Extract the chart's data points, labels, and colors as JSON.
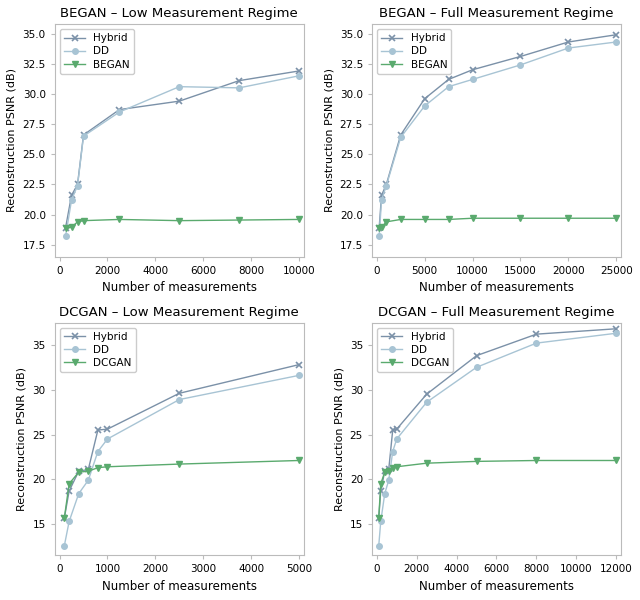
{
  "subplots": [
    {
      "title": "BEGAN – Low Measurement Regime",
      "xlabel": "Number of measurements",
      "ylabel": "Reconstruction PSNR (dB)",
      "xlim": [
        -200,
        10200
      ],
      "ylim": [
        16.5,
        35.8
      ],
      "yticks": [
        17.5,
        20.0,
        22.5,
        25.0,
        27.5,
        30.0,
        32.5,
        35.0
      ],
      "xticks": [
        0,
        2000,
        4000,
        6000,
        8000,
        10000
      ],
      "series": [
        {
          "label": "Hybrid",
          "color": "#7b91a8",
          "marker": "x",
          "x": [
            250,
            500,
            750,
            1000,
            2500,
            5000,
            7500,
            10000
          ],
          "y": [
            18.9,
            21.6,
            22.5,
            26.6,
            28.7,
            29.4,
            31.1,
            31.9
          ]
        },
        {
          "label": "DD",
          "color": "#a8c4d4",
          "marker": "o",
          "x": [
            250,
            500,
            750,
            1000,
            2500,
            5000,
            7500,
            10000
          ],
          "y": [
            18.2,
            21.2,
            22.4,
            26.5,
            28.5,
            30.6,
            30.5,
            31.5
          ]
        },
        {
          "label": "BEGAN",
          "color": "#5aaa6e",
          "marker": "v",
          "x": [
            250,
            500,
            750,
            1000,
            2500,
            5000,
            7500,
            10000
          ],
          "y": [
            18.85,
            18.95,
            19.4,
            19.5,
            19.6,
            19.5,
            19.55,
            19.6
          ]
        }
      ]
    },
    {
      "title": "BEGAN – Full Measurement Regime",
      "xlabel": "Number of measurements",
      "ylabel": "Reconstruction PSNR (dB)",
      "xlim": [
        -500,
        25500
      ],
      "ylim": [
        16.5,
        35.8
      ],
      "yticks": [
        17.5,
        20.0,
        22.5,
        25.0,
        27.5,
        30.0,
        32.5,
        35.0
      ],
      "xticks": [
        0,
        5000,
        10000,
        15000,
        20000,
        25000
      ],
      "series": [
        {
          "label": "Hybrid",
          "color": "#7b91a8",
          "marker": "x",
          "x": [
            250,
            500,
            1000,
            2500,
            5000,
            7500,
            10000,
            15000,
            20000,
            25000
          ],
          "y": [
            18.9,
            21.6,
            22.5,
            26.6,
            29.6,
            31.2,
            32.0,
            33.1,
            34.3,
            34.9
          ]
        },
        {
          "label": "DD",
          "color": "#a8c4d4",
          "marker": "o",
          "x": [
            250,
            500,
            1000,
            2500,
            5000,
            7500,
            10000,
            15000,
            20000,
            25000
          ],
          "y": [
            18.2,
            21.2,
            22.4,
            26.4,
            29.0,
            30.6,
            31.2,
            32.4,
            33.8,
            34.3
          ]
        },
        {
          "label": "BEGAN",
          "color": "#5aaa6e",
          "marker": "v",
          "x": [
            250,
            500,
            1000,
            2500,
            5000,
            7500,
            10000,
            15000,
            20000,
            25000
          ],
          "y": [
            18.85,
            18.95,
            19.4,
            19.6,
            19.6,
            19.6,
            19.7,
            19.7,
            19.7,
            19.7
          ]
        }
      ]
    },
    {
      "title": "DCGAN – Low Measurement Regime",
      "xlabel": "Number of measurements",
      "ylabel": "Reconstruction PSNR (dB)",
      "xlim": [
        -100,
        5100
      ],
      "ylim": [
        11.5,
        37.5
      ],
      "yticks": [
        15,
        20,
        25,
        30,
        35
      ],
      "xticks": [
        0,
        1000,
        2000,
        3000,
        4000,
        5000
      ],
      "series": [
        {
          "label": "Hybrid",
          "color": "#7b91a8",
          "marker": "x",
          "x": [
            100,
            200,
            400,
            600,
            800,
            1000,
            2500,
            5000
          ],
          "y": [
            15.7,
            18.7,
            20.9,
            21.1,
            25.5,
            25.6,
            29.6,
            32.8
          ]
        },
        {
          "label": "DD",
          "color": "#a8c4d4",
          "marker": "o",
          "x": [
            100,
            200,
            400,
            600,
            800,
            1000,
            2500,
            5000
          ],
          "y": [
            12.6,
            15.3,
            18.4,
            19.9,
            23.1,
            24.5,
            28.9,
            31.6
          ]
        },
        {
          "label": "DCGAN",
          "color": "#5aaa6e",
          "marker": "v",
          "x": [
            100,
            200,
            400,
            600,
            800,
            1000,
            2500,
            5000
          ],
          "y": [
            15.7,
            19.5,
            20.8,
            20.9,
            21.3,
            21.4,
            21.7,
            22.1
          ]
        }
      ]
    },
    {
      "title": "DCGAN – Full Measurement Regime",
      "xlabel": "Number of measurements",
      "ylabel": "Reconstruction PSNR (dB)",
      "xlim": [
        -240,
        12240
      ],
      "ylim": [
        11.5,
        37.5
      ],
      "yticks": [
        15,
        20,
        25,
        30,
        35
      ],
      "xticks": [
        0,
        2000,
        4000,
        6000,
        8000,
        10000,
        12000
      ],
      "series": [
        {
          "label": "Hybrid",
          "color": "#7b91a8",
          "marker": "x",
          "x": [
            100,
            200,
            400,
            600,
            800,
            1000,
            2500,
            5000,
            8000,
            12000
          ],
          "y": [
            15.7,
            18.7,
            20.9,
            21.1,
            25.5,
            25.6,
            29.5,
            33.8,
            36.2,
            36.8
          ]
        },
        {
          "label": "DD",
          "color": "#a8c4d4",
          "marker": "o",
          "x": [
            100,
            200,
            400,
            600,
            800,
            1000,
            2500,
            5000,
            8000,
            12000
          ],
          "y": [
            12.6,
            15.3,
            18.4,
            19.9,
            23.1,
            24.5,
            28.6,
            32.5,
            35.2,
            36.3
          ]
        },
        {
          "label": "DCGAN",
          "color": "#5aaa6e",
          "marker": "v",
          "x": [
            100,
            200,
            400,
            600,
            800,
            1000,
            2500,
            5000,
            8000,
            12000
          ],
          "y": [
            15.7,
            19.5,
            20.8,
            20.9,
            21.3,
            21.4,
            21.8,
            22.0,
            22.1,
            22.1
          ]
        }
      ]
    }
  ],
  "figure_background": "#ffffff"
}
